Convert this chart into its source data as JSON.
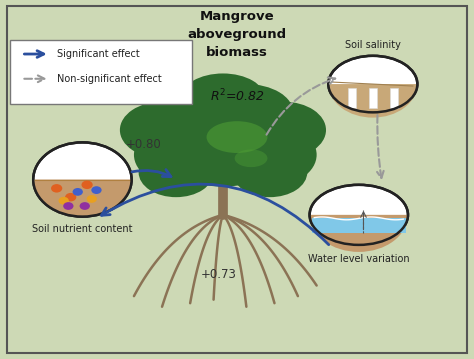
{
  "background_color": "#cdd9b5",
  "border_color": "#555555",
  "title_text": "Mangrove\naboveground\nbiomass",
  "r2_text": "$R^2$=0.82",
  "label_soil_nutrient": "Soil nutrient content",
  "label_water_level": "Water level variation",
  "label_soil_salinity": "Soil salinity",
  "coeff_soil_to_tree": "+0.80",
  "coeff_water_to_soil": "+0.73",
  "significant_arrow_color": "#2b4f9e",
  "nonsignificant_arrow_color": "#999999",
  "legend_sig": "Significant effect",
  "legend_nonsig": "Non-significant effect",
  "figsize": [
    4.74,
    3.59
  ],
  "dpi": 100
}
